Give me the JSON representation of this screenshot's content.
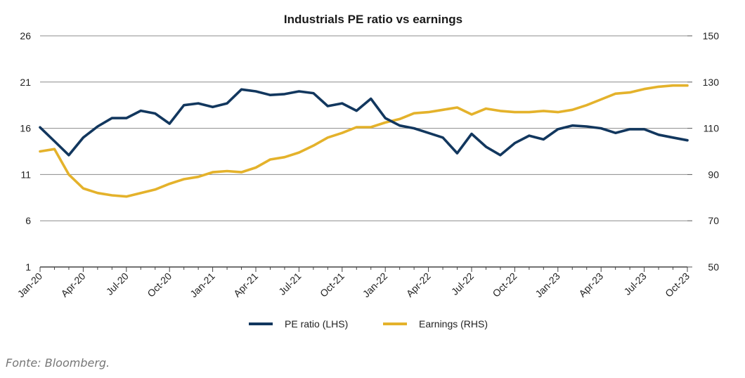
{
  "source_note": "Fonte: Bloomberg.",
  "colors": {
    "pe": "#12375e",
    "earnings": "#e4b22b",
    "grid": "#8c8c8c"
  },
  "chart_data": {
    "type": "line",
    "title": "Industrials PE ratio vs earnings",
    "y_left": {
      "ticks": [
        1,
        6,
        11,
        16,
        21,
        26
      ],
      "range": [
        1,
        26
      ]
    },
    "y_right": {
      "ticks": [
        50,
        70,
        90,
        110,
        130,
        150
      ],
      "range": [
        50,
        150
      ]
    },
    "x_tick_labels": [
      "Jan-20",
      "Apr-20",
      "Jul-20",
      "Oct-20",
      "Jan-21",
      "Apr-21",
      "Jul-21",
      "Oct-21",
      "Jan-22",
      "Apr-22",
      "Jul-22",
      "Oct-22",
      "Jan-23",
      "Apr-23",
      "Jul-23",
      "Oct-23"
    ],
    "x": [
      "2020-01",
      "2020-02",
      "2020-03",
      "2020-04",
      "2020-05",
      "2020-06",
      "2020-07",
      "2020-08",
      "2020-09",
      "2020-10",
      "2020-11",
      "2020-12",
      "2021-01",
      "2021-02",
      "2021-03",
      "2021-04",
      "2021-05",
      "2021-06",
      "2021-07",
      "2021-08",
      "2021-09",
      "2021-10",
      "2021-11",
      "2021-12",
      "2022-01",
      "2022-02",
      "2022-03",
      "2022-04",
      "2022-05",
      "2022-06",
      "2022-07",
      "2022-08",
      "2022-09",
      "2022-10",
      "2022-11",
      "2022-12",
      "2023-01",
      "2023-02",
      "2023-03",
      "2023-04",
      "2023-05",
      "2023-06",
      "2023-07",
      "2023-08",
      "2023-09",
      "2023-10"
    ],
    "grid": true,
    "legend_position": "bottom",
    "series": [
      {
        "name": "PE ratio (LHS)",
        "axis": "left",
        "values": [
          16.1,
          14.6,
          13.1,
          15.0,
          16.2,
          17.1,
          17.1,
          17.9,
          17.6,
          16.5,
          18.5,
          18.7,
          18.3,
          18.7,
          20.2,
          20.0,
          19.6,
          19.7,
          20.0,
          19.8,
          18.4,
          18.7,
          17.9,
          19.2,
          17.1,
          16.3,
          16.0,
          15.5,
          15.0,
          13.3,
          15.4,
          14.0,
          13.1,
          14.4,
          15.2,
          14.8,
          15.9,
          16.3,
          16.2,
          16.0,
          15.5,
          15.9,
          15.9,
          15.3,
          15.0,
          14.7
        ]
      },
      {
        "name": "Earnings (RHS)",
        "axis": "right",
        "values": [
          100.0,
          101.0,
          90.0,
          84.0,
          82.0,
          81.0,
          80.5,
          82.0,
          83.5,
          86.0,
          88.0,
          89.0,
          91.0,
          91.5,
          91.0,
          93.0,
          96.5,
          97.5,
          99.5,
          102.5,
          106.0,
          108.0,
          110.5,
          110.5,
          112.5,
          114.0,
          116.5,
          117.0,
          118.0,
          119.0,
          116.0,
          118.5,
          117.5,
          117.0,
          117.0,
          117.5,
          117.0,
          118.0,
          120.0,
          122.5,
          125.0,
          125.5,
          127.0,
          128.0,
          128.5,
          128.5
        ]
      }
    ]
  }
}
